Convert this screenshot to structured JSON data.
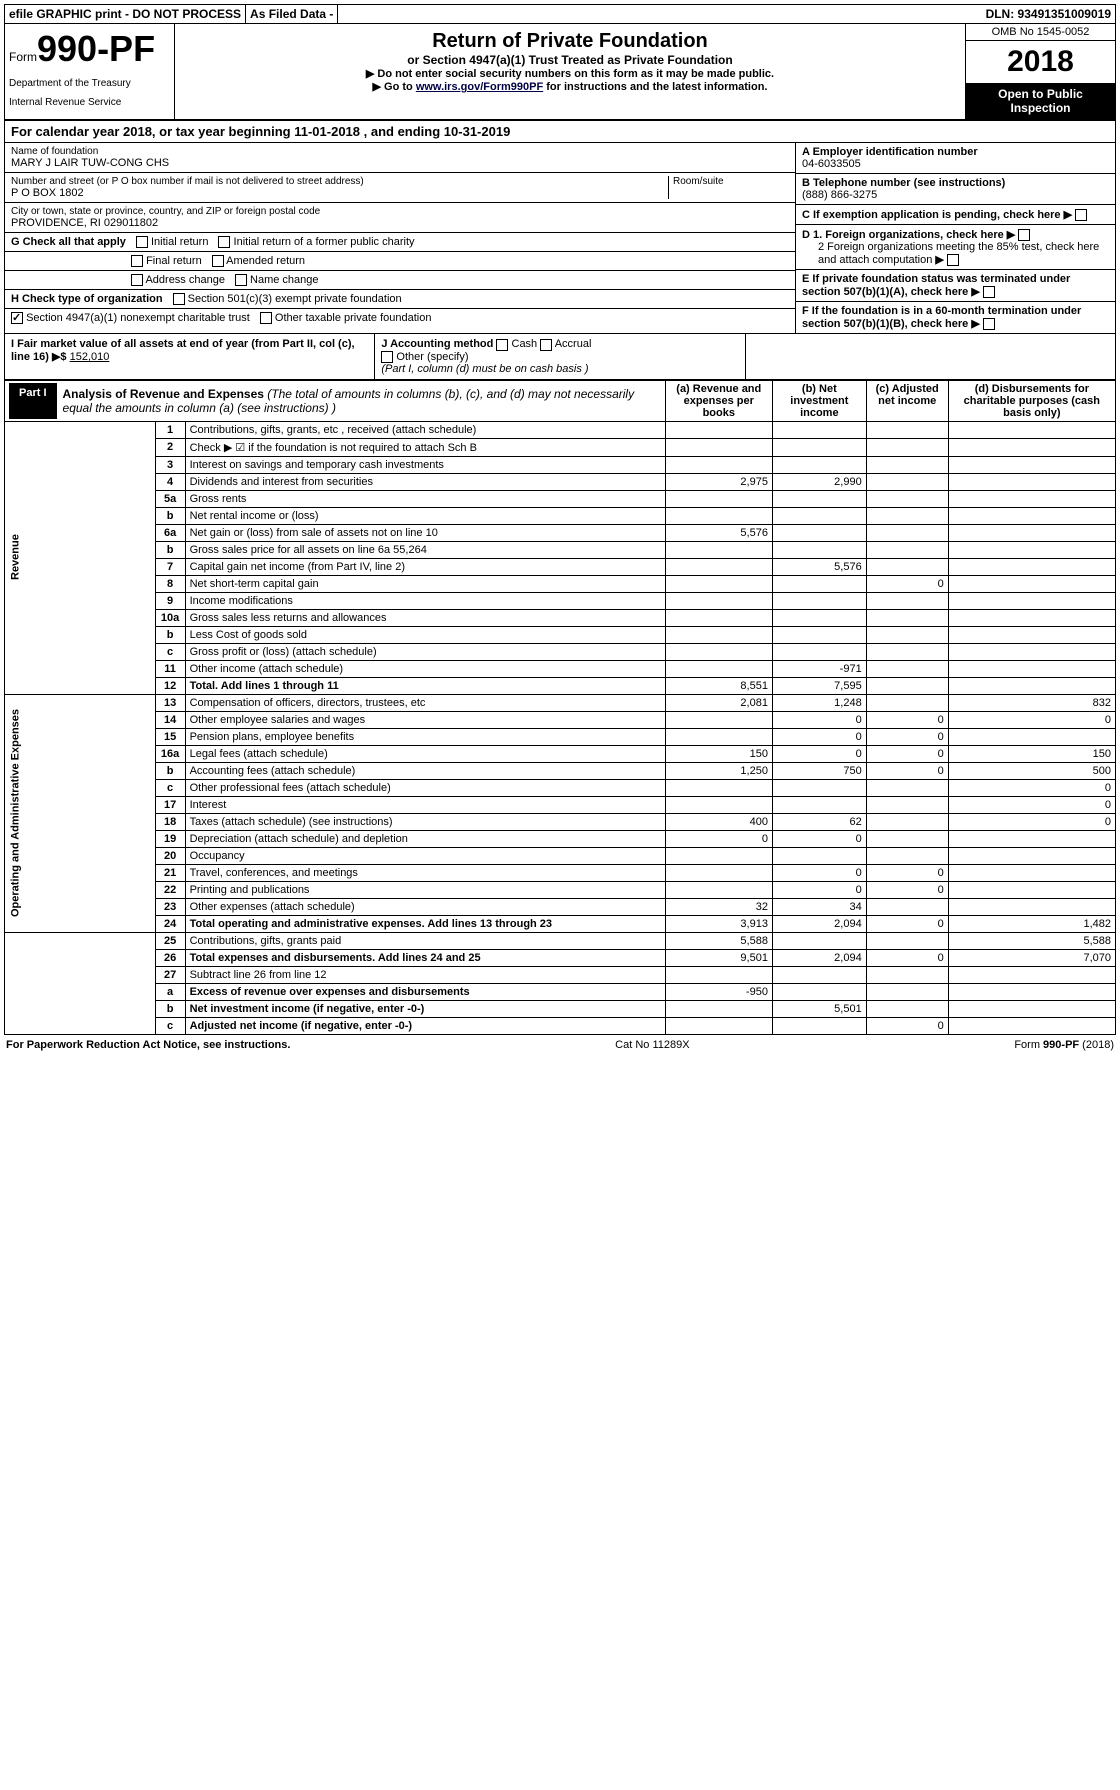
{
  "top": {
    "efile": "efile GRAPHIC print - DO NOT PROCESS",
    "asfiled": "As Filed Data -",
    "dln": "DLN: 93491351009019"
  },
  "header": {
    "form_prefix": "Form",
    "form_number": "990-PF",
    "dept1": "Department of the Treasury",
    "dept2": "Internal Revenue Service",
    "title": "Return of Private Foundation",
    "subtitle": "or Section 4947(a)(1) Trust Treated as Private Foundation",
    "instr1": "▶ Do not enter social security numbers on this form as it may be made public.",
    "instr2_pre": "▶ Go to ",
    "instr2_link": "www.irs.gov/Form990PF",
    "instr2_post": " for instructions and the latest information.",
    "omb": "OMB No 1545-0052",
    "year": "2018",
    "badge": "Open to Public Inspection"
  },
  "calyear": {
    "text_a": "For calendar year 2018, or tax year beginning ",
    "begin": "11-01-2018",
    "text_b": " , and ending ",
    "end": "10-31-2019"
  },
  "entity": {
    "name_label": "Name of foundation",
    "name": "MARY J LAIR TUW-CONG CHS",
    "addr_label": "Number and street (or P O  box number if mail is not delivered to street address)",
    "addr": "P O BOX 1802",
    "room_label": "Room/suite",
    "city_label": "City or town, state or province, country, and ZIP or foreign postal code",
    "city": "PROVIDENCE, RI  029011802",
    "ein_label": "A Employer identification number",
    "ein": "04-6033505",
    "phone_label": "B Telephone number (see instructions)",
    "phone": "(888) 866-3275",
    "c_label": "C If exemption application is pending, check here",
    "d1": "D 1. Foreign organizations, check here",
    "d2": "2  Foreign organizations meeting the 85% test, check here and attach computation",
    "e": "E  If private foundation status was terminated under section 507(b)(1)(A), check here",
    "f": "F  If the foundation is in a 60-month termination under section 507(b)(1)(B), check here"
  },
  "checks": {
    "g_label": "G Check all that apply",
    "g_opts": [
      "Initial return",
      "Initial return of a former public charity",
      "Final return",
      "Amended return",
      "Address change",
      "Name change"
    ],
    "h_label": "H Check type of organization",
    "h_opts": [
      "Section 501(c)(3) exempt private foundation",
      "Section 4947(a)(1) nonexempt charitable trust",
      "Other taxable private foundation"
    ],
    "i_label": "I Fair market value of all assets at end of year (from Part II, col  (c), line 16) ▶$",
    "i_val": "152,010",
    "j_label": "J Accounting method",
    "j_opts": [
      "Cash",
      "Accrual",
      "Other (specify)"
    ],
    "j_note": "(Part I, column (d) must be on cash basis )"
  },
  "part1": {
    "badge": "Part I",
    "title": "Analysis of Revenue and Expenses",
    "title_note": " (The total of amounts in columns (b), (c), and (d) may not necessarily equal the amounts in column (a) (see instructions) )",
    "col_a": "(a) Revenue and expenses per books",
    "col_b": "(b) Net investment income",
    "col_c": "(c) Adjusted net income",
    "col_d": "(d) Disbursements for charitable purposes (cash basis only)"
  },
  "side_rev": "Revenue",
  "side_exp": "Operating and Administrative Expenses",
  "rows": [
    {
      "n": "1",
      "d": "Contributions, gifts, grants, etc , received (attach schedule)",
      "a": "",
      "b": "",
      "c": "",
      "dd": ""
    },
    {
      "n": "2",
      "d": "Check ▶ ☑ if the foundation is not required to attach Sch  B",
      "a": "",
      "b": "",
      "c": "",
      "dd": ""
    },
    {
      "n": "3",
      "d": "Interest on savings and temporary cash investments",
      "a": "",
      "b": "",
      "c": "",
      "dd": ""
    },
    {
      "n": "4",
      "d": "Dividends and interest from securities",
      "a": "2,975",
      "b": "2,990",
      "c": "",
      "dd": ""
    },
    {
      "n": "5a",
      "d": "Gross rents",
      "a": "",
      "b": "",
      "c": "",
      "dd": ""
    },
    {
      "n": "b",
      "d": "Net rental income or (loss)",
      "a": "",
      "b": "",
      "c": "",
      "dd": ""
    },
    {
      "n": "6a",
      "d": "Net gain or (loss) from sale of assets not on line 10",
      "a": "5,576",
      "b": "",
      "c": "",
      "dd": ""
    },
    {
      "n": "b",
      "d": "Gross sales price for all assets on line 6a          55,264",
      "a": "",
      "b": "",
      "c": "",
      "dd": ""
    },
    {
      "n": "7",
      "d": "Capital gain net income (from Part IV, line 2)",
      "a": "",
      "b": "5,576",
      "c": "",
      "dd": ""
    },
    {
      "n": "8",
      "d": "Net short-term capital gain",
      "a": "",
      "b": "",
      "c": "0",
      "dd": ""
    },
    {
      "n": "9",
      "d": "Income modifications",
      "a": "",
      "b": "",
      "c": "",
      "dd": ""
    },
    {
      "n": "10a",
      "d": "Gross sales less returns and allowances",
      "a": "",
      "b": "",
      "c": "",
      "dd": ""
    },
    {
      "n": "b",
      "d": "Less  Cost of goods sold",
      "a": "",
      "b": "",
      "c": "",
      "dd": ""
    },
    {
      "n": "c",
      "d": "Gross profit or (loss) (attach schedule)",
      "a": "",
      "b": "",
      "c": "",
      "dd": ""
    },
    {
      "n": "11",
      "d": "Other income (attach schedule)",
      "a": "",
      "b": "-971",
      "c": "",
      "dd": ""
    },
    {
      "n": "12",
      "d": "Total. Add lines 1 through 11",
      "a": "8,551",
      "b": "7,595",
      "c": "",
      "dd": "",
      "bold": true
    },
    {
      "n": "13",
      "d": "Compensation of officers, directors, trustees, etc",
      "a": "2,081",
      "b": "1,248",
      "c": "",
      "dd": "832"
    },
    {
      "n": "14",
      "d": "Other employee salaries and wages",
      "a": "",
      "b": "0",
      "c": "0",
      "dd": "0"
    },
    {
      "n": "15",
      "d": "Pension plans, employee benefits",
      "a": "",
      "b": "0",
      "c": "0",
      "dd": ""
    },
    {
      "n": "16a",
      "d": "Legal fees (attach schedule)",
      "a": "150",
      "b": "0",
      "c": "0",
      "dd": "150"
    },
    {
      "n": "b",
      "d": "Accounting fees (attach schedule)",
      "a": "1,250",
      "b": "750",
      "c": "0",
      "dd": "500"
    },
    {
      "n": "c",
      "d": "Other professional fees (attach schedule)",
      "a": "",
      "b": "",
      "c": "",
      "dd": "0"
    },
    {
      "n": "17",
      "d": "Interest",
      "a": "",
      "b": "",
      "c": "",
      "dd": "0"
    },
    {
      "n": "18",
      "d": "Taxes (attach schedule) (see instructions)",
      "a": "400",
      "b": "62",
      "c": "",
      "dd": "0"
    },
    {
      "n": "19",
      "d": "Depreciation (attach schedule) and depletion",
      "a": "0",
      "b": "0",
      "c": "",
      "dd": ""
    },
    {
      "n": "20",
      "d": "Occupancy",
      "a": "",
      "b": "",
      "c": "",
      "dd": ""
    },
    {
      "n": "21",
      "d": "Travel, conferences, and meetings",
      "a": "",
      "b": "0",
      "c": "0",
      "dd": ""
    },
    {
      "n": "22",
      "d": "Printing and publications",
      "a": "",
      "b": "0",
      "c": "0",
      "dd": ""
    },
    {
      "n": "23",
      "d": "Other expenses (attach schedule)",
      "a": "32",
      "b": "34",
      "c": "",
      "dd": ""
    },
    {
      "n": "24",
      "d": "Total operating and administrative expenses. Add lines 13 through 23",
      "a": "3,913",
      "b": "2,094",
      "c": "0",
      "dd": "1,482",
      "bold": true
    },
    {
      "n": "25",
      "d": "Contributions, gifts, grants paid",
      "a": "5,588",
      "b": "",
      "c": "",
      "dd": "5,588"
    },
    {
      "n": "26",
      "d": "Total expenses and disbursements. Add lines 24 and 25",
      "a": "9,501",
      "b": "2,094",
      "c": "0",
      "dd": "7,070",
      "bold": true
    },
    {
      "n": "27",
      "d": "Subtract line 26 from line 12",
      "a": "",
      "b": "",
      "c": "",
      "dd": ""
    },
    {
      "n": "a",
      "d": "Excess of revenue over expenses and disbursements",
      "a": "-950",
      "b": "",
      "c": "",
      "dd": "",
      "bold": true
    },
    {
      "n": "b",
      "d": "Net investment income (if negative, enter -0-)",
      "a": "",
      "b": "5,501",
      "c": "",
      "dd": "",
      "bold": true
    },
    {
      "n": "c",
      "d": "Adjusted net income (if negative, enter -0-)",
      "a": "",
      "b": "",
      "c": "0",
      "dd": "",
      "bold": true
    }
  ],
  "footer": {
    "left": "For Paperwork Reduction Act Notice, see instructions.",
    "mid": "Cat  No  11289X",
    "right": "Form 990-PF (2018)"
  }
}
